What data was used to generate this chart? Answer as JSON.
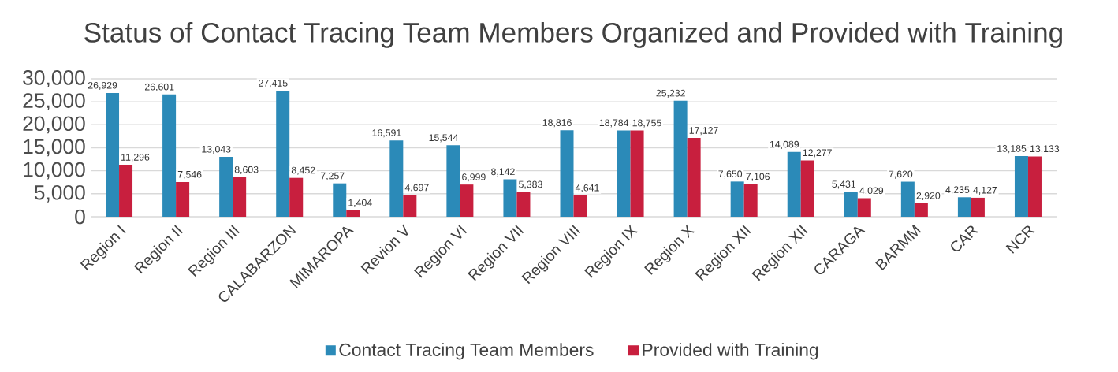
{
  "chart_data": {
    "type": "bar",
    "title": "Status of Contact Tracing Team Members Organized and Provided with Training",
    "categories": [
      "Region I",
      "Region II",
      "Region III",
      "CALABARZON",
      "MIMAROPA",
      "Revion V",
      "Region VI",
      "Region VII",
      "Region VIII",
      "Region IX",
      "Region X",
      "Region XII",
      "Region XII",
      "CARAGA",
      "BARMM",
      "CAR",
      "NCR"
    ],
    "series": [
      {
        "name": "Contact Tracing Team Members",
        "color": "#2b8ab8",
        "values": [
          26929,
          26601,
          13043,
          27415,
          7257,
          16591,
          15544,
          8142,
          18816,
          18784,
          25232,
          7650,
          14089,
          5431,
          7620,
          4235,
          13185
        ],
        "value_labels": [
          "26,929",
          "26,601",
          "13,043",
          "27,415",
          "7,257",
          "16,591",
          "15,544",
          "8,142",
          "18,816",
          "18,784",
          "25,232",
          "7,650",
          "14,089",
          "5,431",
          "7,620",
          "4,235",
          "13,185"
        ]
      },
      {
        "name": "Provided with Training",
        "color": "#c81f3e",
        "values": [
          11296,
          7546,
          8603,
          8452,
          1404,
          4697,
          6999,
          5383,
          4641,
          18755,
          17127,
          7106,
          12277,
          4029,
          2920,
          4127,
          13133
        ],
        "value_labels": [
          "11,296",
          "7,546",
          "8,603",
          "8,452",
          "1,404",
          "4,697",
          "6,999",
          "5,383",
          "4,641",
          "18,755",
          "17,127",
          "7,106",
          "12,277",
          "4,029",
          "2,920",
          "4,127",
          "13,133"
        ]
      }
    ],
    "ylim": [
      0,
      30000
    ],
    "yticks": [
      {
        "value": 0,
        "label": "0"
      },
      {
        "value": 5000,
        "label": "5,000"
      },
      {
        "value": 10000,
        "label": "10,000"
      },
      {
        "value": 15000,
        "label": "15,000"
      },
      {
        "value": 20000,
        "label": "20,000"
      },
      {
        "value": 25000,
        "label": "25,000"
      },
      {
        "value": 30000,
        "label": "30,000"
      }
    ],
    "grid": "y",
    "legend": "bottom"
  }
}
